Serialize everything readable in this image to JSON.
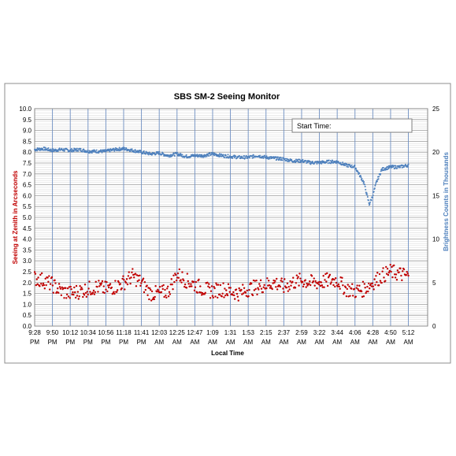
{
  "chart_data": {
    "type": "scatter",
    "title": "SBS SM-2 Seeing Monitor",
    "xlabel": "Local Time",
    "ylabel_left": "Seeing at Zenith in Arcseconds",
    "ylabel_right": "Brightness Counts in Thousands",
    "annotation_box": "Start Time:",
    "ylim_left": [
      0,
      10
    ],
    "ylim_right": [
      0,
      25
    ],
    "grid": true,
    "x_ticks": [
      [
        "9:28",
        "PM"
      ],
      [
        "9:50",
        "PM"
      ],
      [
        "10:12",
        "PM"
      ],
      [
        "10:34",
        "PM"
      ],
      [
        "10:56",
        "PM"
      ],
      [
        "11:18",
        "PM"
      ],
      [
        "11:41",
        "PM"
      ],
      [
        "12:03",
        "AM"
      ],
      [
        "12:25",
        "AM"
      ],
      [
        "12:47",
        "AM"
      ],
      [
        "1:09",
        "AM"
      ],
      [
        "1:31",
        "AM"
      ],
      [
        "1:53",
        "AM"
      ],
      [
        "2:15",
        "AM"
      ],
      [
        "2:37",
        "AM"
      ],
      [
        "2:59",
        "AM"
      ],
      [
        "3:22",
        "AM"
      ],
      [
        "3:44",
        "AM"
      ],
      [
        "4:06",
        "AM"
      ],
      [
        "4:28",
        "AM"
      ],
      [
        "4:50",
        "AM"
      ],
      [
        "5:12",
        "AM"
      ]
    ],
    "y_ticks_left": [
      "0.0",
      "0.5",
      "1.0",
      "1.5",
      "2.0",
      "2.5",
      "3.0",
      "3.5",
      "4.0",
      "4.5",
      "5.0",
      "5.5",
      "6.0",
      "6.5",
      "7.0",
      "7.5",
      "8.0",
      "8.5",
      "9.0",
      "9.5",
      "10.0"
    ],
    "y_ticks_right": [
      "0",
      "5",
      "10",
      "15",
      "20",
      "25"
    ],
    "series": [
      {
        "axis": "left",
        "color": "#c00000",
        "x_tick_index": [
          0,
          0.5,
          1,
          1.5,
          2,
          2.5,
          3,
          3.5,
          4,
          4.5,
          5,
          5.5,
          6,
          6.5,
          7,
          7.5,
          8,
          8.5,
          9,
          9.5,
          10,
          10.5,
          11,
          11.5,
          12,
          12.5,
          13,
          13.5,
          14,
          14.5,
          15,
          15.5,
          16,
          16.5,
          17,
          17.5,
          18,
          18.5,
          19,
          19.5,
          20,
          20.5,
          21
        ],
        "values": [
          2.2,
          2.1,
          1.9,
          1.6,
          1.5,
          1.6,
          1.7,
          1.8,
          1.7,
          1.8,
          2.0,
          2.3,
          2.0,
          1.5,
          1.5,
          1.6,
          2.4,
          2.1,
          1.9,
          1.7,
          1.6,
          1.7,
          1.6,
          1.5,
          1.7,
          1.8,
          1.9,
          2.0,
          1.8,
          2.0,
          2.1,
          2.0,
          2.0,
          2.1,
          2.1,
          1.7,
          1.6,
          1.7,
          2.0,
          2.3,
          2.5,
          2.4,
          2.3
        ]
      },
      {
        "axis": "right",
        "color": "#4f81bd",
        "x_tick_index": [
          0,
          0.5,
          1,
          1.5,
          2,
          2.5,
          3,
          3.5,
          4,
          4.5,
          5,
          5.5,
          6,
          6.5,
          7,
          7.5,
          8,
          8.5,
          9,
          9.5,
          10,
          10.5,
          11,
          11.5,
          12,
          12.5,
          13,
          13.5,
          14,
          14.5,
          15,
          15.5,
          16,
          16.5,
          17,
          17.5,
          18,
          18.5,
          18.8,
          19,
          19.2,
          19.5,
          20,
          20.5,
          21
        ],
        "values": [
          20.3,
          20.4,
          20.2,
          20.3,
          20.2,
          20.3,
          20.1,
          20.1,
          20.1,
          20.3,
          20.4,
          20.2,
          20.0,
          19.8,
          19.9,
          19.6,
          19.8,
          19.5,
          19.6,
          19.6,
          19.8,
          19.6,
          19.5,
          19.4,
          19.4,
          19.6,
          19.4,
          19.3,
          19.2,
          19.0,
          19.0,
          18.8,
          18.8,
          18.9,
          18.9,
          18.5,
          18.3,
          16.5,
          14.0,
          15.0,
          16.5,
          18.0,
          18.3,
          18.3,
          18.5
        ]
      }
    ]
  }
}
